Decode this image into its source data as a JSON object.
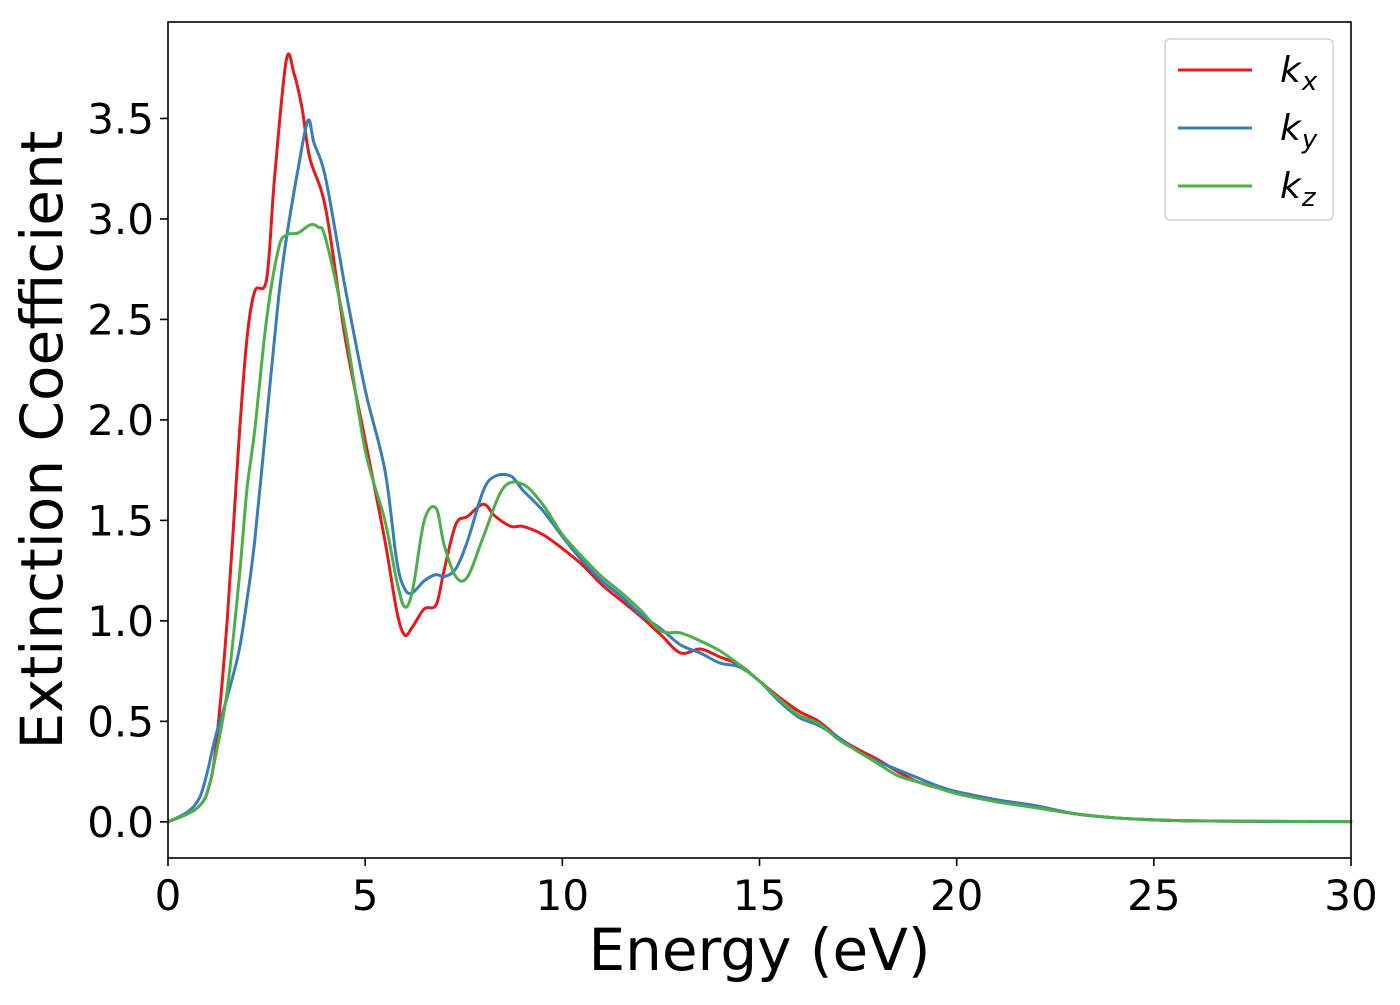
{
  "chart_data": {
    "type": "line",
    "title": "",
    "xlabel": "Energy (eV)",
    "ylabel": "Extinction Coefficient",
    "xlim": [
      0,
      30
    ],
    "ylim": [
      -0.18,
      3.98
    ],
    "xticks": [
      0,
      5,
      10,
      15,
      20,
      25,
      30
    ],
    "xtick_labels": [
      "0",
      "5",
      "10",
      "15",
      "20",
      "25",
      "30"
    ],
    "yticks": [
      0.0,
      0.5,
      1.0,
      1.5,
      2.0,
      2.5,
      3.0,
      3.5
    ],
    "ytick_labels": [
      "0.0",
      "0.5",
      "1.0",
      "1.5",
      "2.0",
      "2.5",
      "3.0",
      "3.5"
    ],
    "grid": false,
    "legend_position": "top-right",
    "series": [
      {
        "name": "k",
        "subscript": "x",
        "color": "#e41a1c",
        "x": [
          0,
          0.5,
          0.8,
          1.0,
          1.2,
          1.5,
          1.8,
          2.0,
          2.2,
          2.5,
          2.7,
          3.0,
          3.2,
          3.4,
          3.6,
          4.0,
          4.5,
          5.0,
          5.5,
          5.8,
          6.0,
          6.2,
          6.5,
          6.8,
          7.0,
          7.3,
          7.6,
          8.0,
          8.3,
          8.7,
          9.0,
          9.5,
          10.0,
          10.5,
          11.0,
          11.5,
          12.0,
          12.5,
          13.0,
          13.5,
          14.0,
          14.5,
          15.0,
          15.5,
          16.0,
          16.5,
          17.0,
          17.5,
          18.0,
          18.5,
          19.0,
          19.5,
          20.0,
          21.0,
          22.0,
          23.0,
          24.0,
          25.0,
          26.0,
          28.0,
          30.0
        ],
        "y": [
          0.0,
          0.04,
          0.08,
          0.15,
          0.35,
          1.0,
          1.9,
          2.4,
          2.64,
          2.7,
          3.2,
          3.79,
          3.72,
          3.55,
          3.3,
          3.05,
          2.4,
          1.9,
          1.4,
          1.05,
          0.93,
          0.97,
          1.06,
          1.08,
          1.25,
          1.48,
          1.52,
          1.58,
          1.52,
          1.47,
          1.47,
          1.43,
          1.36,
          1.28,
          1.18,
          1.1,
          1.02,
          0.93,
          0.84,
          0.86,
          0.82,
          0.78,
          0.7,
          0.62,
          0.55,
          0.5,
          0.42,
          0.36,
          0.31,
          0.25,
          0.2,
          0.17,
          0.15,
          0.11,
          0.08,
          0.04,
          0.02,
          0.01,
          0.005,
          0.002,
          0.001
        ]
      },
      {
        "name": "k",
        "subscript": "y",
        "color": "#377eb8",
        "x": [
          0,
          0.5,
          0.8,
          1.0,
          1.2,
          1.5,
          1.8,
          2.0,
          2.2,
          2.5,
          2.8,
          3.0,
          3.3,
          3.55,
          3.7,
          4.0,
          4.5,
          5.0,
          5.5,
          5.8,
          6.0,
          6.2,
          6.5,
          6.8,
          7.0,
          7.3,
          7.6,
          8.0,
          8.3,
          8.7,
          9.0,
          9.5,
          10.0,
          10.5,
          11.0,
          11.5,
          12.0,
          12.5,
          13.0,
          13.5,
          14.0,
          14.5,
          15.0,
          15.5,
          16.0,
          16.5,
          17.0,
          17.5,
          18.0,
          18.5,
          19.0,
          19.5,
          20.0,
          21.0,
          22.0,
          23.0,
          24.0,
          25.0,
          26.0,
          28.0,
          30.0
        ],
        "y": [
          0.0,
          0.05,
          0.12,
          0.25,
          0.42,
          0.62,
          0.85,
          1.1,
          1.4,
          2.0,
          2.6,
          2.9,
          3.25,
          3.49,
          3.38,
          3.2,
          2.65,
          2.15,
          1.75,
          1.3,
          1.16,
          1.14,
          1.2,
          1.23,
          1.22,
          1.26,
          1.4,
          1.65,
          1.72,
          1.72,
          1.65,
          1.55,
          1.42,
          1.3,
          1.2,
          1.12,
          1.03,
          0.96,
          0.88,
          0.84,
          0.79,
          0.77,
          0.7,
          0.6,
          0.52,
          0.48,
          0.42,
          0.35,
          0.3,
          0.26,
          0.22,
          0.18,
          0.15,
          0.11,
          0.08,
          0.04,
          0.02,
          0.01,
          0.005,
          0.002,
          0.001
        ]
      },
      {
        "name": "k",
        "subscript": "z",
        "color": "#4daf4a",
        "x": [
          0,
          0.5,
          0.8,
          1.0,
          1.2,
          1.5,
          1.8,
          2.0,
          2.2,
          2.5,
          2.8,
          3.0,
          3.3,
          3.6,
          3.8,
          4.0,
          4.5,
          5.0,
          5.5,
          5.8,
          6.0,
          6.2,
          6.5,
          6.8,
          7.0,
          7.3,
          7.6,
          8.0,
          8.5,
          9.0,
          9.5,
          10.0,
          10.5,
          11.0,
          11.5,
          12.0,
          12.5,
          13.0,
          13.5,
          14.0,
          14.5,
          15.0,
          15.5,
          16.0,
          16.5,
          17.0,
          17.5,
          18.0,
          18.5,
          19.0,
          19.5,
          20.0,
          21.0,
          22.0,
          23.0,
          24.0,
          25.0,
          26.0,
          28.0,
          30.0
        ],
        "y": [
          0.0,
          0.04,
          0.08,
          0.15,
          0.32,
          0.65,
          1.2,
          1.65,
          1.95,
          2.5,
          2.85,
          2.92,
          2.93,
          2.97,
          2.96,
          2.9,
          2.45,
          1.85,
          1.5,
          1.2,
          1.07,
          1.15,
          1.5,
          1.56,
          1.38,
          1.22,
          1.22,
          1.42,
          1.66,
          1.68,
          1.58,
          1.43,
          1.32,
          1.22,
          1.14,
          1.05,
          0.95,
          0.94,
          0.9,
          0.85,
          0.78,
          0.7,
          0.61,
          0.53,
          0.49,
          0.41,
          0.35,
          0.29,
          0.23,
          0.2,
          0.17,
          0.14,
          0.1,
          0.07,
          0.04,
          0.02,
          0.01,
          0.005,
          0.002,
          0.001
        ]
      }
    ]
  }
}
